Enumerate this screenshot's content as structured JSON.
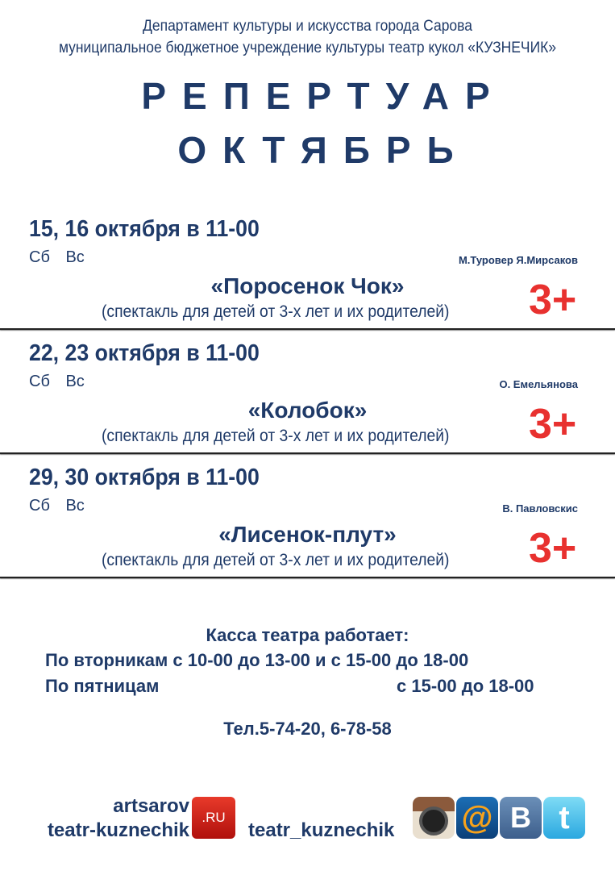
{
  "header": {
    "line1": "Департамент культуры и искусства города Сарова",
    "line2": "муниципальное бюджетное учреждение культуры театр кукол «КУЗНЕЧИК»"
  },
  "title": "РЕПЕРТУАР",
  "month": "ОКТЯБРЬ",
  "shows": [
    {
      "date": "15, 16 октября в 11-00",
      "days": "Сб Вс",
      "author": "М.Туровер Я.Мирсаков",
      "title": "«Поросенок Чок»",
      "subtitle": "(спектакль для детей от 3-х лет и их родителей)",
      "age": "3+"
    },
    {
      "date": "22, 23 октября в 11-00",
      "days": "Сб Вс",
      "author": "О. Емельянова",
      "title": "«Колобок»",
      "subtitle": "(спектакль для детей от 3-х лет и их родителей)",
      "age": "3+"
    },
    {
      "date": "29, 30 октября в 11-00",
      "days": "Сб Вс",
      "author": "В. Павловскис",
      "title": "«Лисенок-плут»",
      "subtitle": "(спектакль для детей от 3-х лет и их родителей)",
      "age": "3+"
    }
  ],
  "box_office": {
    "heading": "Касса театра работает:",
    "tue_label": "По вторникам с 10-00 до 13-00 и с 15-00 до 18-00",
    "fri_label": "По пятницам",
    "fri_hours": "с 15-00 до 18-00",
    "phone": "Тел.5-74-20, 6-78-58"
  },
  "footer": {
    "site1": "artsarov",
    "site2": "teatr-kuznechik",
    "ru_badge": ".RU",
    "social_handle": "teatr_kuznechik",
    "icons": [
      "instagram-icon",
      "mail-ru-icon",
      "vk-icon",
      "twitter-icon"
    ],
    "mail_glyph": "@",
    "vk_glyph": "B",
    "twitter_glyph": "t"
  },
  "colors": {
    "text": "#1f3a68",
    "age": "#e8312f"
  }
}
